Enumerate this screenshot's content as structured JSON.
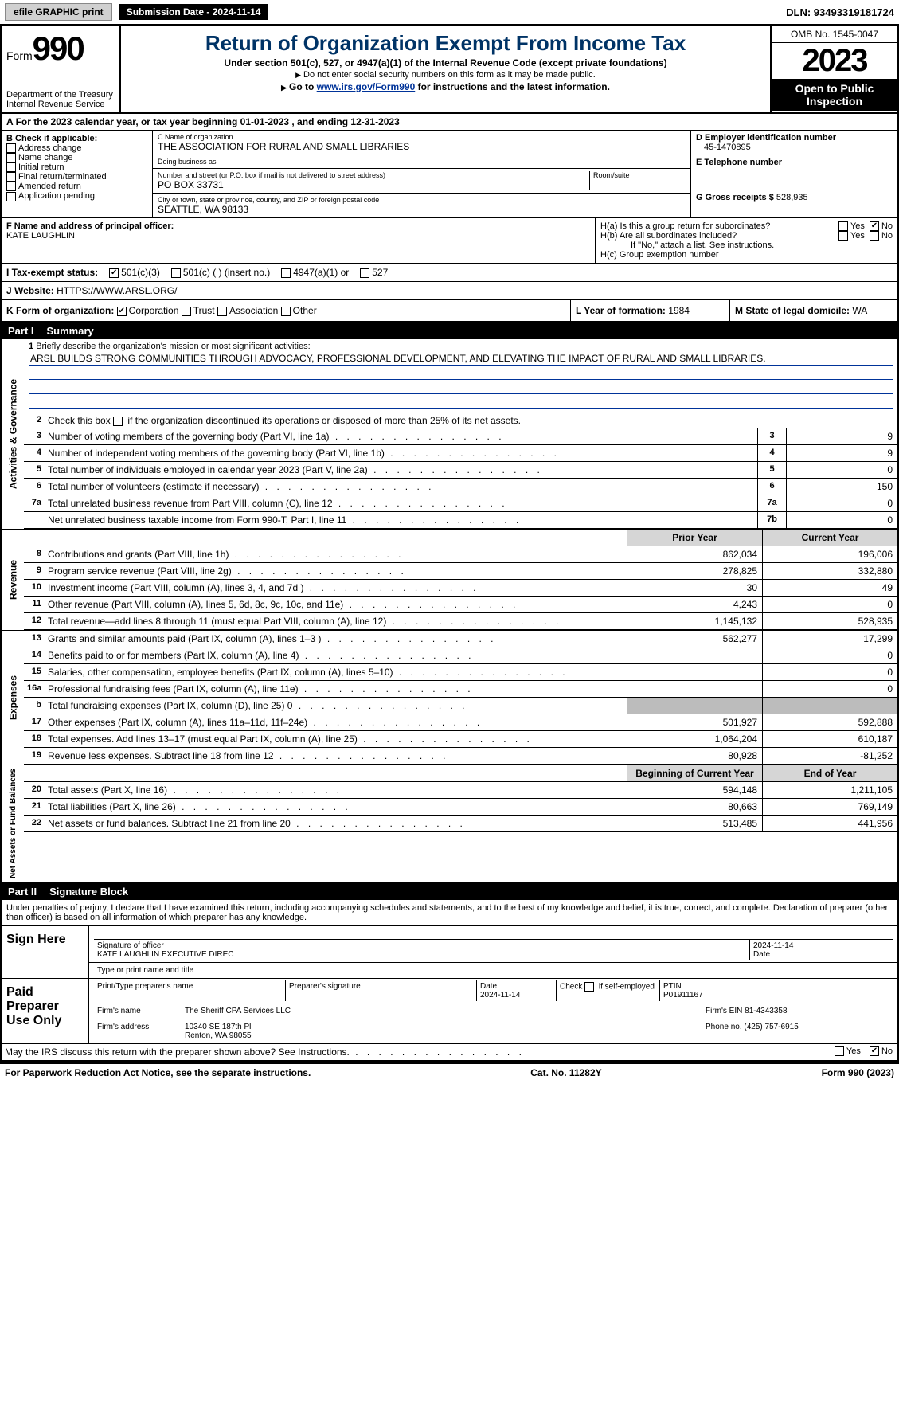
{
  "topbar": {
    "efile": "efile GRAPHIC print",
    "sub_label": "Submission Date - 2024-11-14",
    "dln": "DLN: 93493319181724"
  },
  "header": {
    "form_word": "Form",
    "form_num": "990",
    "dept": "Department of the Treasury",
    "irs": "Internal Revenue Service",
    "title": "Return of Organization Exempt From Income Tax",
    "sub1": "Under section 501(c), 527, or 4947(a)(1) of the Internal Revenue Code (except private foundations)",
    "sub2": "Do not enter social security numbers on this form as it may be made public.",
    "sub3_pre": "Go to ",
    "sub3_link": "www.irs.gov/Form990",
    "sub3_post": " for instructions and the latest information.",
    "omb": "OMB No. 1545-0047",
    "year": "2023",
    "inspect": "Open to Public Inspection"
  },
  "row_a": "For the 2023 calendar year, or tax year beginning 01-01-2023   , and ending 12-31-2023",
  "box_b": {
    "title": "B Check if applicable:",
    "items": [
      "Address change",
      "Name change",
      "Initial return",
      "Final return/terminated",
      "Amended return",
      "Application pending"
    ]
  },
  "box_c": {
    "name_lbl": "C Name of organization",
    "name_val": "THE ASSOCIATION FOR RURAL AND SMALL LIBRARIES",
    "dba_lbl": "Doing business as",
    "dba_val": "",
    "street_lbl": "Number and street (or P.O. box if mail is not delivered to street address)",
    "street_val": "PO BOX 33731",
    "suite_lbl": "Room/suite",
    "suite_val": "",
    "city_lbl": "City or town, state or province, country, and ZIP or foreign postal code",
    "city_val": "SEATTLE, WA  98133"
  },
  "box_d": {
    "ein_lbl": "D Employer identification number",
    "ein_val": "45-1470895",
    "tel_lbl": "E Telephone number",
    "tel_val": "",
    "gross_lbl": "G Gross receipts $",
    "gross_val": "528,935"
  },
  "box_f": {
    "lbl": "F  Name and address of principal officer:",
    "val": "KATE LAUGHLIN"
  },
  "box_h": {
    "ha": "H(a)  Is this a group return for subordinates?",
    "hb": "H(b)  Are all subordinates included?",
    "hb_note": "If \"No,\" attach a list. See instructions.",
    "hc": "H(c)  Group exemption number",
    "yes": "Yes",
    "no": "No"
  },
  "box_i": {
    "lbl": "I    Tax-exempt status:",
    "o1": "501(c)(3)",
    "o2": "501(c) (  ) (insert no.)",
    "o3": "4947(a)(1) or",
    "o4": "527"
  },
  "box_j": {
    "lbl": "J   Website:",
    "val": " HTTPS://WWW.ARSL.ORG/"
  },
  "box_k": {
    "lbl": "K Form of organization:",
    "o1": "Corporation",
    "o2": "Trust",
    "o3": "Association",
    "o4": "Other"
  },
  "box_l": {
    "lbl": "L Year of formation:",
    "val": "1984"
  },
  "box_m": {
    "lbl": "M State of legal domicile:",
    "val": "WA"
  },
  "part1": {
    "name": "Part I",
    "title": "Summary"
  },
  "sections": {
    "ag": "Activities & Governance",
    "rev": "Revenue",
    "exp": "Expenses",
    "na": "Net Assets or Fund Balances"
  },
  "line1": {
    "lbl": "Briefly describe the organization's mission or most significant activities:",
    "val": "ARSL BUILDS STRONG COMMUNITIES THROUGH ADVOCACY, PROFESSIONAL DEVELOPMENT, AND ELEVATING THE IMPACT OF RURAL AND SMALL LIBRARIES."
  },
  "line2": "Check this box         if the organization discontinued its operations or disposed of more than 25% of its net assets.",
  "lines_ag": [
    {
      "n": "3",
      "t": "Number of voting members of the governing body (Part VI, line 1a)",
      "b": "3",
      "v": "9"
    },
    {
      "n": "4",
      "t": "Number of independent voting members of the governing body (Part VI, line 1b)",
      "b": "4",
      "v": "9"
    },
    {
      "n": "5",
      "t": "Total number of individuals employed in calendar year 2023 (Part V, line 2a)",
      "b": "5",
      "v": "0"
    },
    {
      "n": "6",
      "t": "Total number of volunteers (estimate if necessary)",
      "b": "6",
      "v": "150"
    },
    {
      "n": "7a",
      "t": "Total unrelated business revenue from Part VIII, column (C), line 12",
      "b": "7a",
      "v": "0"
    },
    {
      "n": "",
      "t": "Net unrelated business taxable income from Form 990-T, Part I, line 11",
      "b": "7b",
      "v": "0"
    }
  ],
  "col_hdr": {
    "py": "Prior Year",
    "cy": "Current Year",
    "boy": "Beginning of Current Year",
    "eoy": "End of Year"
  },
  "lines_rev": [
    {
      "n": "8",
      "t": "Contributions and grants (Part VIII, line 1h)",
      "py": "862,034",
      "cy": "196,006"
    },
    {
      "n": "9",
      "t": "Program service revenue (Part VIII, line 2g)",
      "py": "278,825",
      "cy": "332,880"
    },
    {
      "n": "10",
      "t": "Investment income (Part VIII, column (A), lines 3, 4, and 7d )",
      "py": "30",
      "cy": "49"
    },
    {
      "n": "11",
      "t": "Other revenue (Part VIII, column (A), lines 5, 6d, 8c, 9c, 10c, and 11e)",
      "py": "4,243",
      "cy": "0"
    },
    {
      "n": "12",
      "t": "Total revenue—add lines 8 through 11 (must equal Part VIII, column (A), line 12)",
      "py": "1,145,132",
      "cy": "528,935"
    }
  ],
  "lines_exp": [
    {
      "n": "13",
      "t": "Grants and similar amounts paid (Part IX, column (A), lines 1–3 )",
      "py": "562,277",
      "cy": "17,299"
    },
    {
      "n": "14",
      "t": "Benefits paid to or for members (Part IX, column (A), line 4)",
      "py": "",
      "cy": "0"
    },
    {
      "n": "15",
      "t": "Salaries, other compensation, employee benefits (Part IX, column (A), lines 5–10)",
      "py": "",
      "cy": "0"
    },
    {
      "n": "16a",
      "t": "Professional fundraising fees (Part IX, column (A), line 11e)",
      "py": "",
      "cy": "0"
    },
    {
      "n": "b",
      "t": "Total fundraising expenses (Part IX, column (D), line 25) 0",
      "py": "grey",
      "cy": "grey"
    },
    {
      "n": "17",
      "t": "Other expenses (Part IX, column (A), lines 11a–11d, 11f–24e)",
      "py": "501,927",
      "cy": "592,888"
    },
    {
      "n": "18",
      "t": "Total expenses. Add lines 13–17 (must equal Part IX, column (A), line 25)",
      "py": "1,064,204",
      "cy": "610,187"
    },
    {
      "n": "19",
      "t": "Revenue less expenses. Subtract line 18 from line 12",
      "py": "80,928",
      "cy": "-81,252"
    }
  ],
  "lines_na": [
    {
      "n": "20",
      "t": "Total assets (Part X, line 16)",
      "py": "594,148",
      "cy": "1,211,105"
    },
    {
      "n": "21",
      "t": "Total liabilities (Part X, line 26)",
      "py": "80,663",
      "cy": "769,149"
    },
    {
      "n": "22",
      "t": "Net assets or fund balances. Subtract line 21 from line 20",
      "py": "513,485",
      "cy": "441,956"
    }
  ],
  "part2": {
    "name": "Part II",
    "title": "Signature Block"
  },
  "penalty": "Under penalties of perjury, I declare that I have examined this return, including accompanying schedules and statements, and to the best of my knowledge and belief, it is true, correct, and complete. Declaration of preparer (other than officer) is based on all information of which preparer has any knowledge.",
  "sign": {
    "left": "Sign Here",
    "sig_lbl": "Signature of officer",
    "name": "KATE LAUGHLIN  EXECUTIVE DIREC",
    "name_lbl": "Type or print name and title",
    "date": "2024-11-14",
    "date_lbl": "Date"
  },
  "paid": {
    "left": "Paid Preparer Use Only",
    "r1": {
      "c1": "Print/Type preparer's name",
      "c2": "Preparer's signature",
      "c3": "Date",
      "c3v": "2024-11-14",
      "c4": "Check        if self-employed",
      "c5": "PTIN",
      "c5v": "P01911167"
    },
    "r2": {
      "c1": "Firm's name",
      "c1v": "The Sheriff CPA Services LLC",
      "c2": "Firm's EIN",
      "c2v": "81-4343358"
    },
    "r3": {
      "c1": "Firm's address",
      "c1v": "10340 SE 187th Pl",
      "c1v2": "Renton, WA  98055",
      "c2": "Phone no.",
      "c2v": "(425) 757-6915"
    }
  },
  "discuss": "May the IRS discuss this return with the preparer shown above? See Instructions.",
  "footer": {
    "l": "For Paperwork Reduction Act Notice, see the separate instructions.",
    "c": "Cat. No. 11282Y",
    "r": "Form 990 (2023)"
  }
}
